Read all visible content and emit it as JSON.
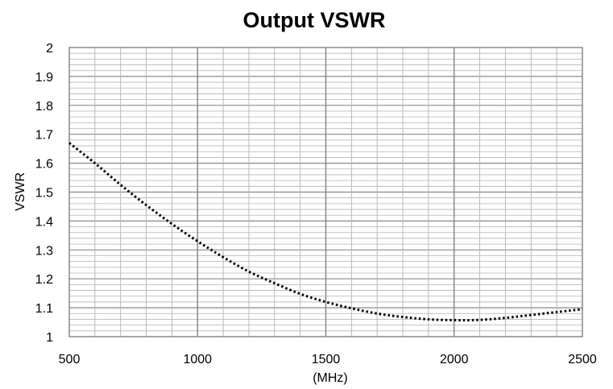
{
  "chart_data": {
    "type": "line",
    "title": "Output VSWR",
    "xlabel": "(MHz)",
    "ylabel": "VSWR",
    "xlim": [
      500,
      2500
    ],
    "ylim": [
      1,
      2
    ],
    "x_ticks": [
      500,
      1000,
      1500,
      2000,
      2500
    ],
    "y_ticks": [
      "1",
      "1.1",
      "1.2",
      "1.3",
      "1.4",
      "1.5",
      "1.6",
      "1.7",
      "1.8",
      "1.9",
      "2"
    ],
    "grid": true,
    "legend": "none",
    "series": [
      {
        "style": "dotted",
        "color": "#000000",
        "x": [
          500,
          600,
          700,
          800,
          900,
          1000,
          1100,
          1200,
          1300,
          1400,
          1500,
          1600,
          1700,
          1800,
          1900,
          2000,
          2100,
          2200,
          2300,
          2400,
          2500
        ],
        "y": [
          1.67,
          1.6,
          1.525,
          1.455,
          1.39,
          1.33,
          1.275,
          1.225,
          1.185,
          1.148,
          1.12,
          1.098,
          1.08,
          1.068,
          1.06,
          1.057,
          1.058,
          1.065,
          1.075,
          1.085,
          1.095
        ]
      }
    ]
  }
}
